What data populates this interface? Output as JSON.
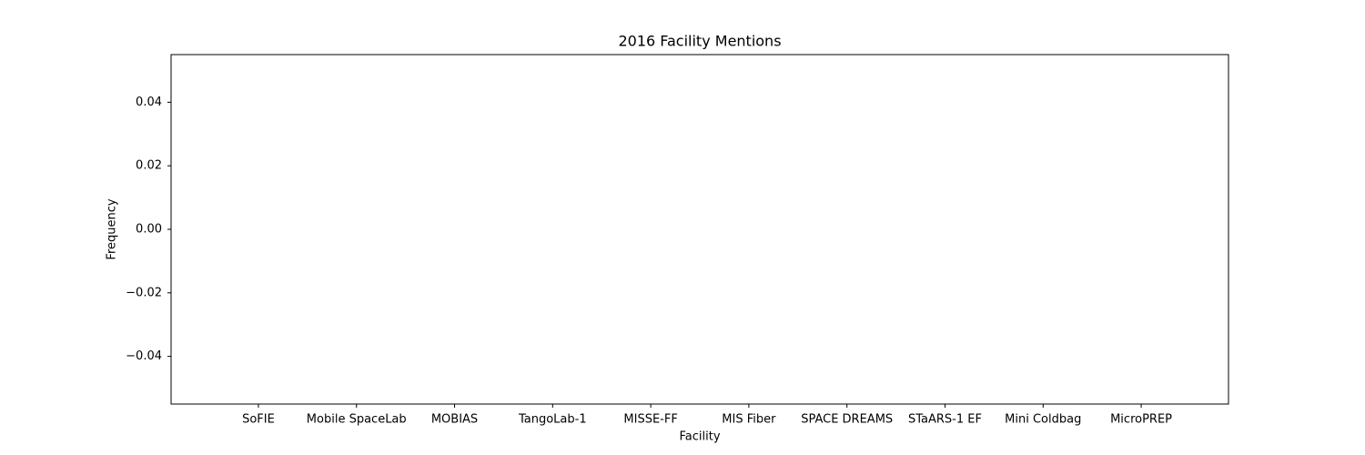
{
  "chart_data": {
    "type": "bar",
    "title": "2016 Facility Mentions",
    "x_label": "Facility",
    "y_label": "Frequency",
    "categories": [
      "SoFIE",
      "Mobile SpaceLab",
      "MOBIAS",
      "TangoLab-1",
      "MISSE-FF",
      "MIS Fiber",
      "SPACE DREAMS",
      "STaARS-1 EF",
      "Mini Coldbag",
      "MicroPREP"
    ],
    "values": [
      0,
      0,
      0,
      0,
      0,
      0,
      0,
      0,
      0,
      0
    ],
    "color": "#1f77b4",
    "ylim": [
      -0.055,
      0.055
    ],
    "yticks": [
      {
        "value": -0.04,
        "label": "−0.04"
      },
      {
        "value": -0.02,
        "label": "−0.02"
      },
      {
        "value": 0,
        "label": "0.00"
      },
      0.02,
      0.04
    ],
    "grid": false
  }
}
